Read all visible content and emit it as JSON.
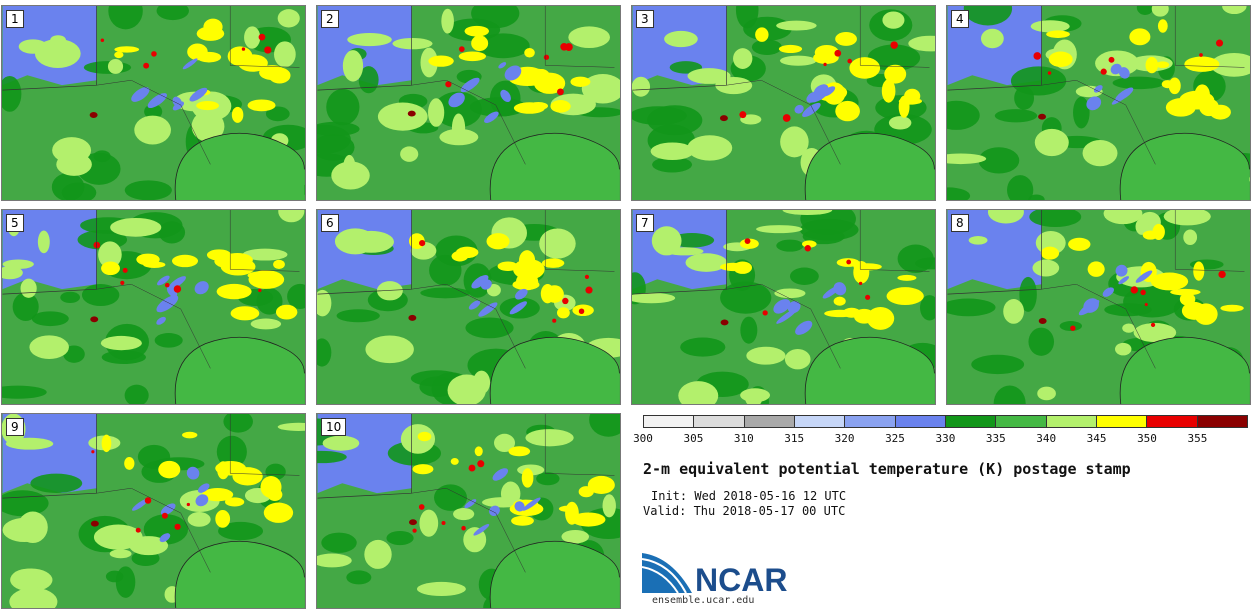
{
  "panels": [
    {
      "label": "1"
    },
    {
      "label": "2"
    },
    {
      "label": "3"
    },
    {
      "label": "4"
    },
    {
      "label": "5"
    },
    {
      "label": "6"
    },
    {
      "label": "7"
    },
    {
      "label": "8"
    },
    {
      "label": "9"
    },
    {
      "label": "10"
    }
  ],
  "colorbar": {
    "ticks": [
      "300",
      "305",
      "310",
      "315",
      "320",
      "325",
      "330",
      "335",
      "340",
      "345",
      "350",
      "355"
    ],
    "colors": [
      "#f2f2f2",
      "#dcdcdc",
      "#a9a9a9",
      "#c6d6f7",
      "#8aa2f0",
      "#6a82ee",
      "#12961a",
      "#44b844",
      "#b3f06c",
      "#ffff00",
      "#e80000",
      "#8a0000"
    ]
  },
  "title": "2-m equivalent potential temperature (K) postage stamp",
  "init": "Init: Wed 2018-05-16 12 UTC",
  "valid": "Valid: Thu 2018-05-17 00 UTC",
  "logo": {
    "text": "NCAR",
    "url": "ensemble.ucar.edu"
  },
  "map_colors": {
    "land_mid": "#44a845",
    "land_dark": "#12961a",
    "land_light": "#b3f06c",
    "warm": "#ffff00",
    "hot": "#e80000",
    "very_hot": "#8a0000",
    "cool": "#6a82ee",
    "ocean": "#44b844"
  }
}
